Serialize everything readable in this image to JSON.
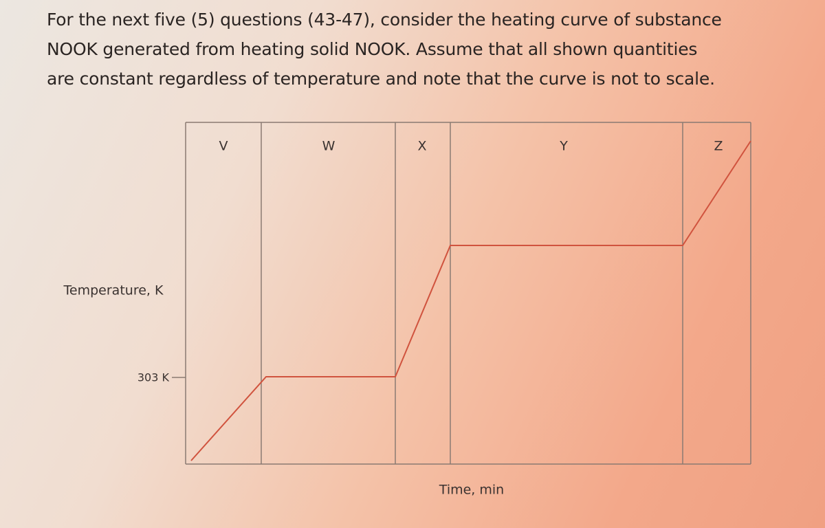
{
  "question": {
    "lines": [
      "For the next five (5) questions (43-47), consider the heating curve of substance",
      "NOOK generated from heating solid NOOK. Assume that all shown quantities",
      "are constant regardless of temperature and note that the curve is not to scale."
    ]
  },
  "diagram": {
    "regions": [
      "V",
      "W",
      "X",
      "Y",
      "Z"
    ],
    "y_axis_label": "Temperature, K",
    "y_tick_label": "303 K",
    "x_axis_label": "Time, min"
  }
}
